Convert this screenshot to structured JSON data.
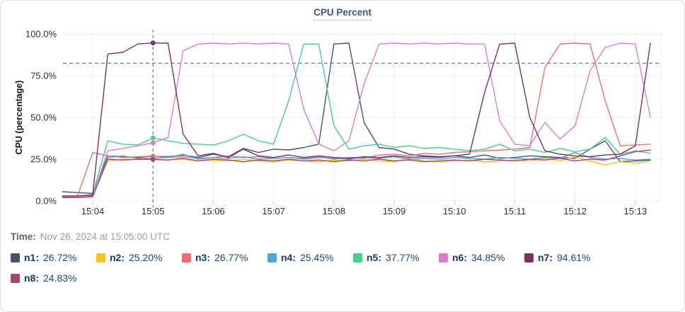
{
  "card": {
    "title": "CPU Percent"
  },
  "time": {
    "label": "Time:",
    "value": "Nov 26, 2024 at 15:05:00 UTC"
  },
  "legend": {
    "items": [
      {
        "name": "n1",
        "value": "26.72%",
        "color": "#46526c"
      },
      {
        "name": "n2",
        "value": "25.20%",
        "color": "#fcc31b"
      },
      {
        "name": "n3",
        "value": "26.77%",
        "color": "#f26d6d"
      },
      {
        "name": "n4",
        "value": "25.45%",
        "color": "#4da5dd"
      },
      {
        "name": "n5",
        "value": "37.77%",
        "color": "#44cf8a"
      },
      {
        "name": "n6",
        "value": "34.85%",
        "color": "#d77fcd"
      },
      {
        "name": "n7",
        "value": "94.61%",
        "color": "#7c3164"
      },
      {
        "name": "n8",
        "value": "24.83%",
        "color": "#a74964"
      }
    ]
  },
  "chart_data": {
    "type": "line",
    "title": "CPU Percent",
    "xlabel": "",
    "ylabel": "CPU (percentage)",
    "ylim": [
      0,
      100
    ],
    "y_tick_labels": [
      "0.0%",
      "25.0%",
      "50.0%",
      "75.0%",
      "100.0%"
    ],
    "x_tick_labels": [
      "15:04",
      "15:05",
      "15:06",
      "15:07",
      "15:08",
      "15:09",
      "15:10",
      "15:11",
      "15:12",
      "15:13"
    ],
    "x_start": "15:03:30",
    "interval_seconds": 15,
    "crosshair_time": "15:05:00",
    "crosshair_color": "#4e7d94",
    "threshold_percent": 82.5,
    "grid": true,
    "legend_position": "bottom",
    "series": [
      {
        "name": "n1",
        "color": "#46526c",
        "values": [
          5.5,
          5,
          4.5,
          27,
          26.5,
          26,
          26.72,
          26.5,
          27.5,
          26,
          28,
          26.5,
          31.5,
          29,
          31,
          30.5,
          32,
          34,
          94,
          94.5,
          47,
          32,
          31,
          28,
          27,
          26.5,
          27,
          26,
          27.5,
          25.5,
          26,
          27,
          26.5,
          26,
          25.5,
          31,
          36,
          23.5,
          24,
          24.5
        ]
      },
      {
        "name": "n2",
        "color": "#fcc31b",
        "values": [
          2,
          2,
          3,
          24,
          25,
          25,
          25.2,
          24.5,
          25,
          24,
          24.5,
          24,
          25,
          24,
          23.5,
          24.5,
          24,
          23.5,
          24.5,
          24,
          25,
          24,
          23.5,
          25.5,
          24,
          23.5,
          24,
          24.5,
          23.5,
          24,
          24.5,
          24,
          25.5,
          24,
          26.5,
          24,
          21.5,
          23.5,
          22.5,
          24
        ]
      },
      {
        "name": "n3",
        "color": "#f26d6d",
        "values": [
          2.5,
          3,
          29,
          27,
          26,
          26.5,
          26.77,
          26,
          26.5,
          25.5,
          26,
          27,
          26,
          26.5,
          25.5,
          26,
          25.5,
          26.5,
          25,
          26,
          25.5,
          27.5,
          28,
          27,
          28.5,
          28,
          29,
          29.5,
          30,
          30.5,
          31,
          32,
          80,
          94,
          94.5,
          94,
          60,
          33,
          33.5,
          34
        ]
      },
      {
        "name": "n4",
        "color": "#4da5dd",
        "values": [
          2,
          2.5,
          3,
          26,
          27,
          25.5,
          25.45,
          26,
          28,
          25,
          26,
          25.5,
          26.5,
          25,
          25.5,
          26,
          25,
          26,
          25.5,
          25,
          26,
          25.5,
          26.5,
          25,
          25.5,
          25,
          26,
          25.5,
          25,
          26,
          25.5,
          25,
          26,
          25.5,
          29,
          26,
          25,
          25.5,
          24.5,
          25
        ]
      },
      {
        "name": "n5",
        "color": "#44cf8a",
        "values": [
          2,
          2.5,
          4,
          36,
          34,
          33.5,
          37.77,
          36,
          34.5,
          34,
          33.5,
          36,
          40,
          36,
          34,
          60,
          94,
          94,
          45,
          31,
          33,
          34,
          32,
          33,
          31.5,
          32,
          31,
          30,
          31,
          34,
          30,
          31,
          29,
          31.5,
          29.5,
          31,
          38,
          28,
          30,
          28.5
        ]
      },
      {
        "name": "n6",
        "color": "#d77fcd",
        "values": [
          2,
          2.5,
          3,
          30,
          31.5,
          33,
          34.85,
          38,
          90,
          94,
          94.5,
          94,
          94.5,
          94,
          94.5,
          94,
          55,
          34,
          30,
          36,
          70,
          94,
          94.5,
          94,
          94.5,
          94,
          94.5,
          94,
          94,
          48,
          34,
          33,
          47,
          37,
          45,
          78,
          92,
          94.5,
          94,
          50
        ]
      },
      {
        "name": "n7",
        "color": "#7c3164",
        "values": [
          3,
          3,
          3.5,
          88,
          89,
          94,
          94.61,
          94.5,
          40,
          27,
          28.5,
          26,
          31,
          27,
          26,
          27.5,
          26,
          27,
          26,
          25.5,
          26.5,
          26,
          27,
          26,
          26.5,
          26,
          27,
          28,
          65,
          94,
          94.5,
          50,
          30,
          28,
          27,
          26.5,
          27.5,
          28,
          33,
          94.5
        ]
      },
      {
        "name": "n8",
        "color": "#a74964",
        "values": [
          2,
          2,
          2.5,
          25,
          24.5,
          25,
          24.83,
          24.5,
          25.5,
          24,
          25,
          24.5,
          23.5,
          24.5,
          24,
          25,
          24,
          24.5,
          23.5,
          24.5,
          24,
          25,
          24,
          24.5,
          23.5,
          24,
          24.5,
          24,
          25,
          24.5,
          24,
          25,
          24.5,
          25.5,
          24,
          25,
          24.5,
          27,
          29.5,
          30.5
        ]
      }
    ]
  }
}
